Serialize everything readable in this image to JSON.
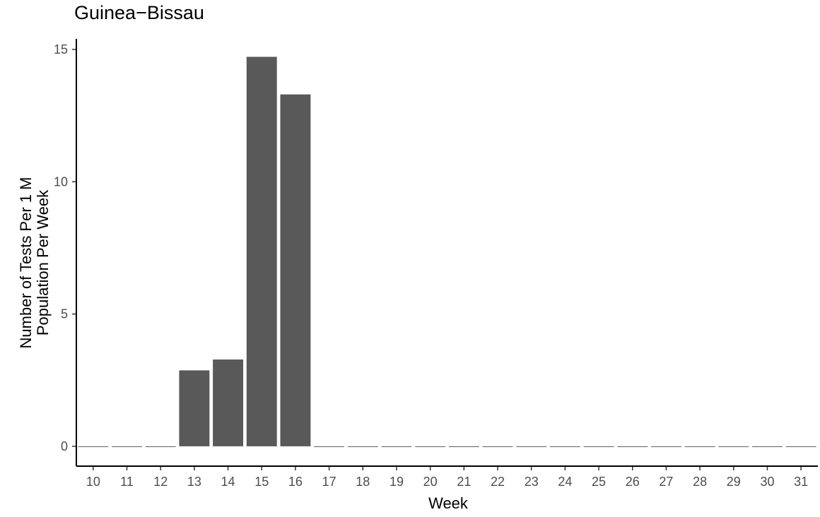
{
  "chart_data": {
    "type": "bar",
    "title": "Guinea−Bissau",
    "xlabel": "Week",
    "ylabel_lines": [
      "Number of Tests Per 1 M",
      "Population Per Week"
    ],
    "categories": [
      "10",
      "11",
      "12",
      "13",
      "14",
      "15",
      "16",
      "17",
      "18",
      "19",
      "20",
      "21",
      "22",
      "23",
      "24",
      "25",
      "26",
      "27",
      "28",
      "29",
      "30",
      "31"
    ],
    "values": [
      0,
      0,
      0,
      2.87,
      3.28,
      14.72,
      13.3,
      0,
      0,
      0,
      0,
      0,
      0,
      0,
      0,
      0,
      0,
      0,
      0,
      0,
      0,
      0
    ],
    "yticks": [
      "0",
      "5",
      "10",
      "15"
    ],
    "ylim": [
      -0.75,
      15.4
    ],
    "grid": false,
    "legend": "none",
    "colors": {
      "bar": "#595959",
      "axis": "#000000",
      "tick_label": "#4d4d4d"
    }
  }
}
